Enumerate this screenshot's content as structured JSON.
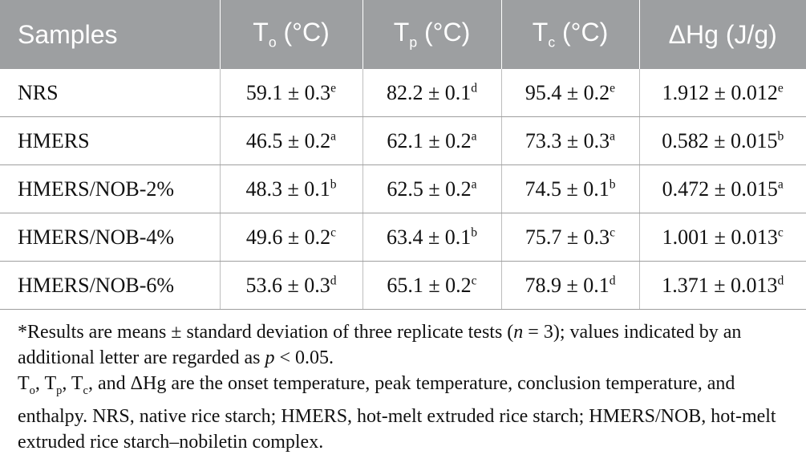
{
  "table": {
    "headers": [
      {
        "base": "Samples",
        "sub": "",
        "tail": ""
      },
      {
        "base": "T",
        "sub": "o",
        "tail": " (°C)"
      },
      {
        "base": "T",
        "sub": "p",
        "tail": " (°C)"
      },
      {
        "base": "T",
        "sub": "c",
        "tail": " (°C)"
      },
      {
        "base": "ΔHg (J/g)",
        "sub": "",
        "tail": ""
      }
    ],
    "rows": [
      {
        "sample": "NRS",
        "cells": [
          {
            "v": "59.1 ± 0.3",
            "l": "e"
          },
          {
            "v": "82.2 ± 0.1",
            "l": "d"
          },
          {
            "v": "95.4 ± 0.2",
            "l": "e"
          },
          {
            "v": "1.912 ± 0.012",
            "l": "e"
          }
        ]
      },
      {
        "sample": "HMERS",
        "cells": [
          {
            "v": "46.5 ± 0.2",
            "l": "a"
          },
          {
            "v": "62.1 ± 0.2",
            "l": "a"
          },
          {
            "v": "73.3 ± 0.3",
            "l": "a"
          },
          {
            "v": "0.582 ± 0.015",
            "l": "b"
          }
        ]
      },
      {
        "sample": "HMERS/NOB-2%",
        "cells": [
          {
            "v": "48.3 ± 0.1",
            "l": "b"
          },
          {
            "v": "62.5 ± 0.2",
            "l": "a"
          },
          {
            "v": "74.5 ± 0.1",
            "l": "b"
          },
          {
            "v": "0.472 ± 0.015",
            "l": "a"
          }
        ]
      },
      {
        "sample": "HMERS/NOB-4%",
        "cells": [
          {
            "v": "49.6 ± 0.2",
            "l": "c"
          },
          {
            "v": "63.4 ± 0.1",
            "l": "b"
          },
          {
            "v": "75.7 ± 0.3",
            "l": "c"
          },
          {
            "v": "1.001 ± 0.013",
            "l": "c"
          }
        ]
      },
      {
        "sample": "HMERS/NOB-6%",
        "cells": [
          {
            "v": "53.6 ± 0.3",
            "l": "d"
          },
          {
            "v": "65.1 ± 0.2",
            "l": "c"
          },
          {
            "v": "78.9 ± 0.1",
            "l": "d"
          },
          {
            "v": "1.371 ± 0.013",
            "l": "d"
          }
        ]
      }
    ]
  },
  "notes": {
    "note1": {
      "part1": "*Results are means ± standard deviation of three replicate tests (",
      "n": "n",
      "part2": " = 3); values indicated by an additional letter are regarded as ",
      "p": "p",
      "part3": " < 0.05."
    },
    "note2": {
      "t1": "T",
      "s1": "o",
      "sep1": ", T",
      "s2": "p",
      "sep2": ", T",
      "s3": "c",
      "rest": ", and ΔHg are the onset temperature, peak temperature, conclusion temperature, and enthalpy. NRS, native rice starch; HMERS, hot-melt extruded rice starch; HMERS/NOB, hot-melt extruded rice starch–nobiletin complex."
    }
  },
  "colors": {
    "header_bg": "#9d9fa1",
    "header_text": "#ffffff",
    "rule": "#9e9e9e"
  }
}
